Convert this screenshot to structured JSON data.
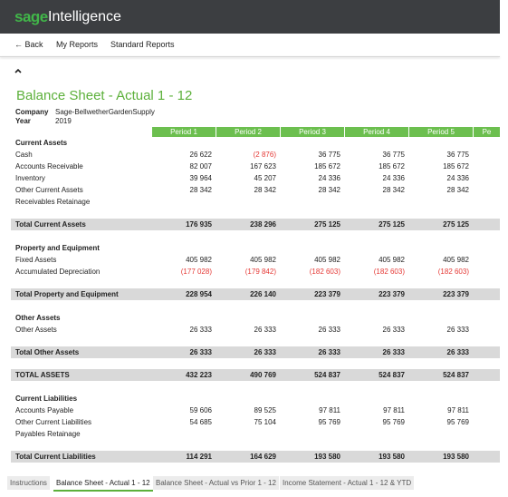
{
  "app": {
    "brand": "sage",
    "product": "Intelligence"
  },
  "nav": [
    "← Back",
    "My Reports",
    "Standard Reports"
  ],
  "report": {
    "title": "Balance Sheet - Actual 1 - 12",
    "meta": [
      {
        "label": "Company",
        "value": "Sage-BellwetherGardenSupply"
      },
      {
        "label": "Year",
        "value": "2019"
      }
    ],
    "columns": [
      "Period 1",
      "Period 2",
      "Period 3",
      "Period 4",
      "Period 5",
      "Pe"
    ],
    "negative_color": "#e53935",
    "rows": [
      {
        "label": "Current Assets",
        "kind": "section"
      },
      {
        "label": "Cash",
        "kind": "item",
        "values": [
          "26 622",
          "(2 876)",
          "36 775",
          "36 775",
          "36 775"
        ]
      },
      {
        "label": "Accounts Receivable",
        "kind": "item",
        "values": [
          "82 007",
          "167 623",
          "185 672",
          "185 672",
          "185 672"
        ]
      },
      {
        "label": "Inventory",
        "kind": "item",
        "values": [
          "39 964",
          "45 207",
          "24 336",
          "24 336",
          "24 336"
        ]
      },
      {
        "label": "Other Current Assets",
        "kind": "item",
        "values": [
          "28 342",
          "28 342",
          "28 342",
          "28 342",
          "28 342"
        ]
      },
      {
        "label": "Receivables Retainage",
        "kind": "item"
      },
      {
        "label": "Total Current Assets",
        "kind": "total",
        "values": [
          "176 935",
          "238 296",
          "275 125",
          "275 125",
          "275 125"
        ]
      },
      {
        "label": "Property and Equipment",
        "kind": "section"
      },
      {
        "label": "Fixed Assets",
        "kind": "item",
        "values": [
          "405 982",
          "405 982",
          "405 982",
          "405 982",
          "405 982"
        ]
      },
      {
        "label": "Accumulated Depreciation",
        "kind": "item",
        "values": [
          "(177 028)",
          "(179 842)",
          "(182 603)",
          "(182 603)",
          "(182 603)"
        ]
      },
      {
        "label": "Total Property and Equipment",
        "kind": "total",
        "values": [
          "228 954",
          "226 140",
          "223 379",
          "223 379",
          "223 379"
        ]
      },
      {
        "label": "Other Assets",
        "kind": "section"
      },
      {
        "label": "Other Assets",
        "kind": "item",
        "values": [
          "26 333",
          "26 333",
          "26 333",
          "26 333",
          "26 333"
        ]
      },
      {
        "label": "Total Other Assets",
        "kind": "total",
        "values": [
          "26 333",
          "26 333",
          "26 333",
          "26 333",
          "26 333"
        ]
      },
      {
        "label": "TOTAL ASSETS",
        "kind": "total",
        "values": [
          "432 223",
          "490 769",
          "524 837",
          "524 837",
          "524 837"
        ]
      },
      {
        "label": "Current Liabilities",
        "kind": "section"
      },
      {
        "label": "Accounts Payable",
        "kind": "item",
        "values": [
          "59 606",
          "89 525",
          "97 811",
          "97 811",
          "97 811"
        ]
      },
      {
        "label": "Other Current Liabilities",
        "kind": "item",
        "values": [
          "54 685",
          "75 104",
          "95 769",
          "95 769",
          "95 769"
        ]
      },
      {
        "label": "Payables Retainage",
        "kind": "item"
      },
      {
        "label": "Total Current Liabilities",
        "kind": "total",
        "values": [
          "114 291",
          "164 629",
          "193 580",
          "193 580",
          "193 580"
        ]
      }
    ]
  },
  "tabs": {
    "items": [
      "Instructions",
      "Balance Sheet - Actual 1 - 12",
      "Balance Sheet - Actual vs Prior 1 - 12",
      "Income Statement - Actual 1 - 12 & YTD"
    ],
    "active": 1
  }
}
